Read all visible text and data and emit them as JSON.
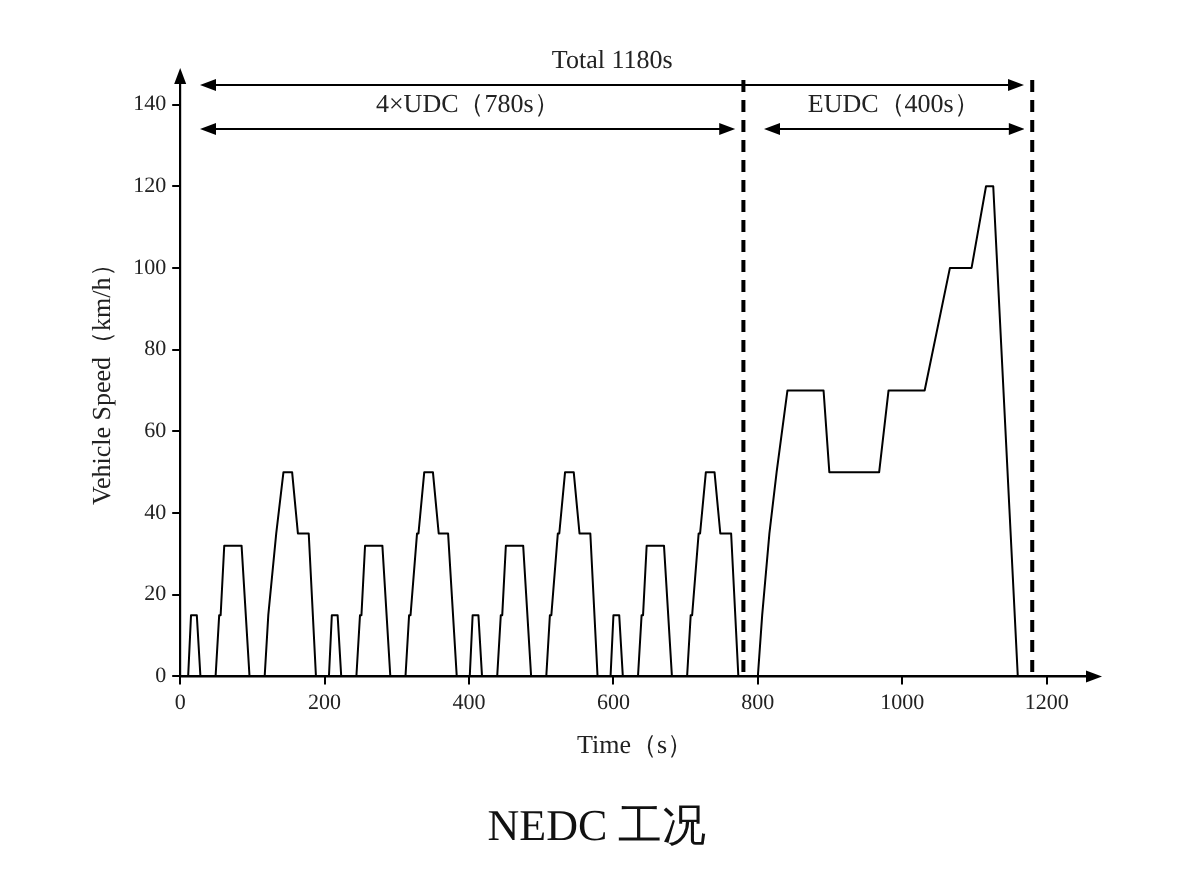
{
  "chart_data": {
    "type": "line",
    "xlabel": "Time（s）",
    "ylabel": "Vehicle Speed（km/h）",
    "x": [
      0,
      11,
      15,
      23,
      28,
      49,
      54,
      56,
      61,
      85,
      96,
      117,
      122,
      124,
      133,
      135,
      143,
      155,
      163,
      176,
      178,
      188,
      195,
      206,
      210,
      218,
      223,
      244,
      249,
      251,
      256,
      280,
      291,
      312,
      317,
      319,
      328,
      330,
      338,
      350,
      358,
      371,
      373,
      383,
      390,
      401,
      405,
      413,
      418,
      439,
      444,
      446,
      451,
      475,
      486,
      507,
      512,
      514,
      523,
      525,
      533,
      545,
      553,
      566,
      568,
      578,
      585,
      596,
      600,
      608,
      613,
      634,
      639,
      641,
      646,
      670,
      681,
      702,
      707,
      709,
      718,
      720,
      728,
      740,
      748,
      761,
      763,
      773,
      780,
      800,
      806,
      816,
      826,
      841,
      891,
      899,
      968,
      981,
      1031,
      1066,
      1096,
      1116,
      1126,
      1160,
      1180
    ],
    "values": [
      0,
      0,
      15,
      15,
      0,
      0,
      15,
      15,
      32,
      32,
      0,
      0,
      15,
      15,
      35,
      35,
      50,
      50,
      35,
      35,
      35,
      0,
      0,
      0,
      15,
      15,
      0,
      0,
      15,
      15,
      32,
      32,
      0,
      0,
      15,
      15,
      35,
      35,
      50,
      50,
      35,
      35,
      35,
      0,
      0,
      0,
      15,
      15,
      0,
      0,
      15,
      15,
      32,
      32,
      0,
      0,
      15,
      15,
      35,
      35,
      50,
      50,
      35,
      35,
      35,
      0,
      0,
      0,
      15,
      15,
      0,
      0,
      15,
      15,
      32,
      32,
      0,
      0,
      15,
      15,
      35,
      35,
      50,
      50,
      35,
      35,
      35,
      0,
      0,
      0,
      15,
      35,
      50,
      70,
      70,
      50,
      50,
      70,
      70,
      100,
      100,
      120,
      120,
      0,
      0
    ],
    "color": "#000000",
    "marker": "none",
    "line_style": "solid",
    "grid": false,
    "legend": false,
    "xlim": [
      0,
      1260
    ],
    "xticks": [
      0,
      200,
      400,
      600,
      800,
      1000,
      1200
    ],
    "ylim": [
      0,
      146
    ],
    "yticks": [
      0,
      20,
      40,
      60,
      80,
      100,
      120,
      140
    ],
    "ref_lines": [
      {
        "axis": "x",
        "value": 780,
        "line_style": "dashed",
        "color": "#000000"
      },
      {
        "axis": "x",
        "value": 1180,
        "line_style": "dashed",
        "color": "#000000"
      }
    ],
    "annotations": [
      "Total 1180s",
      "4×UDC（780s）",
      "EUDC（400s）",
      "NEDC 工况"
    ]
  }
}
